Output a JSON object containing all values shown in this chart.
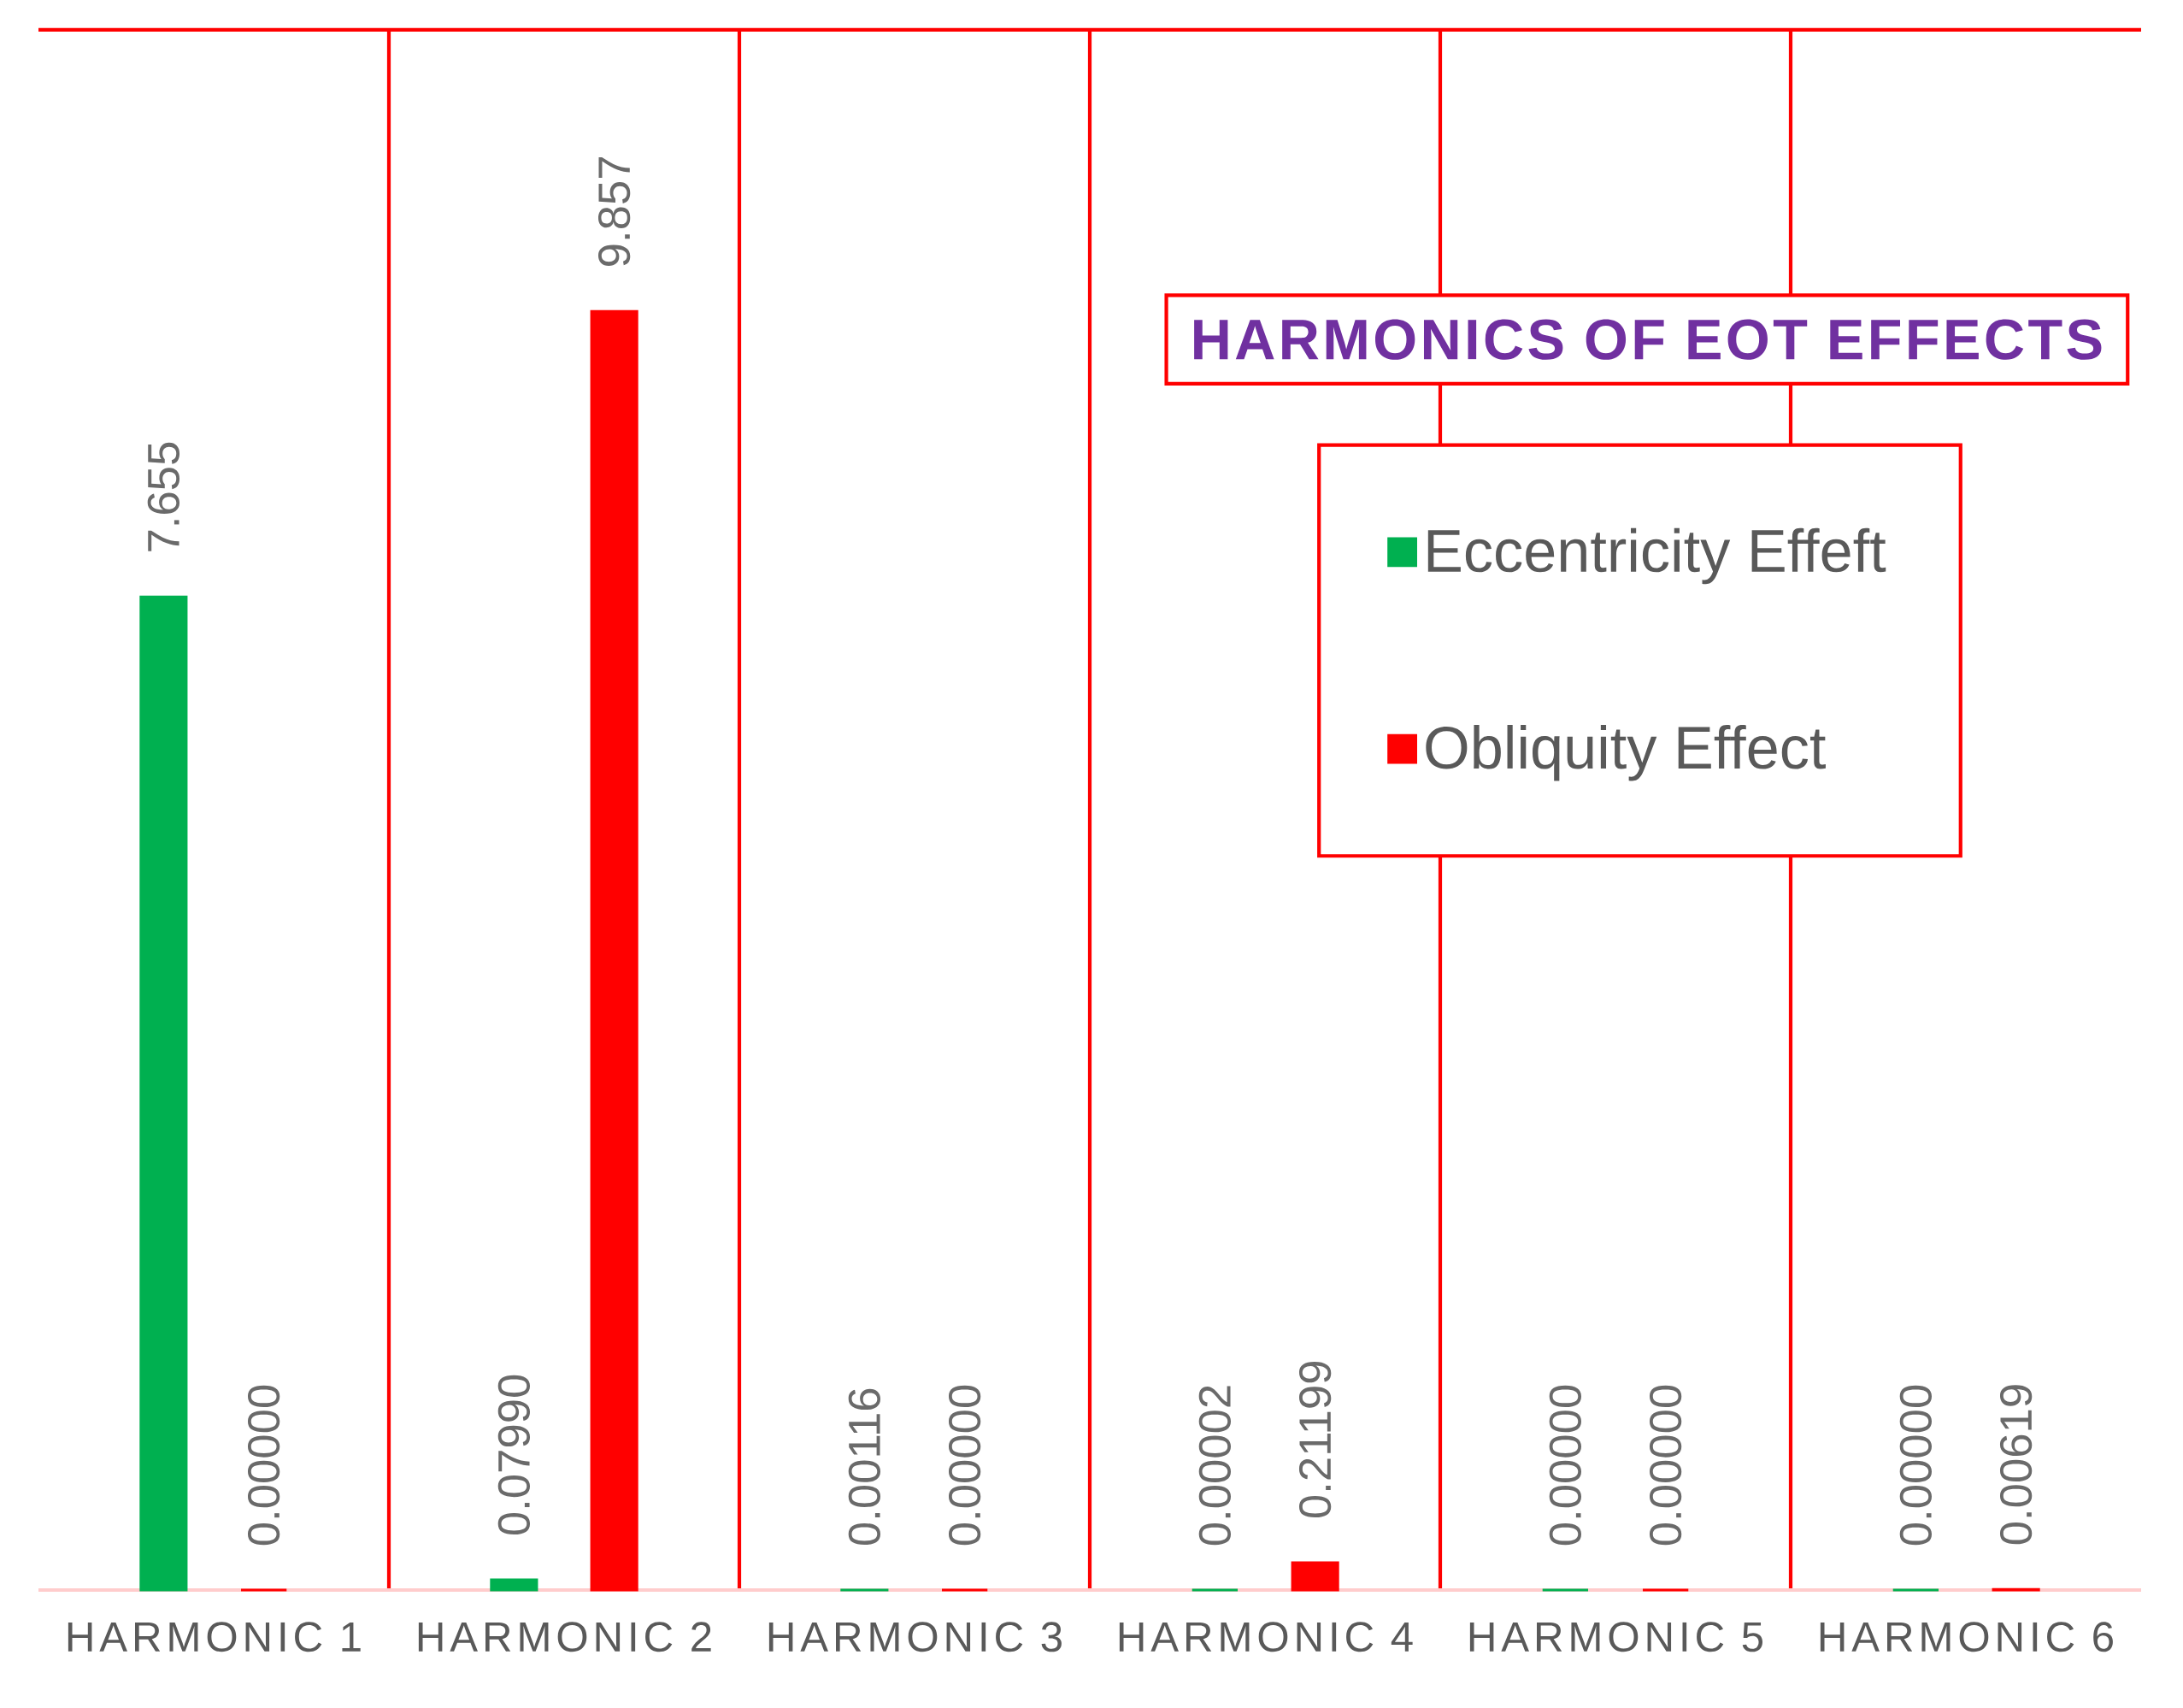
{
  "chart_data": {
    "type": "bar",
    "title": "HARMONICS OF EOT EFFECTS",
    "categories": [
      "HARMONIC 1",
      "HARMONIC 2",
      "HARMONIC 3",
      "HARMONIC 4",
      "HARMONIC 5",
      "HARMONIC 6"
    ],
    "series": [
      {
        "name": "Eccentricity Effeft",
        "color": "#00b050",
        "values": [
          7.655,
          0.0799,
          0.00116,
          2e-05,
          0,
          0
        ],
        "value_labels": [
          "7.655",
          "0.07990",
          "0.00116",
          "0.00002",
          "0.00000",
          "0.00000"
        ]
      },
      {
        "name": "Obliquity Effect",
        "color": "#ff0000",
        "values": [
          0,
          9.857,
          0,
          0.21199,
          0,
          0.00619
        ],
        "value_labels": [
          "0.00000",
          "9.857",
          "0.00000",
          "0.21199",
          "0.00000",
          "0.00619"
        ]
      }
    ],
    "grid": "x",
    "legend": "top right"
  }
}
